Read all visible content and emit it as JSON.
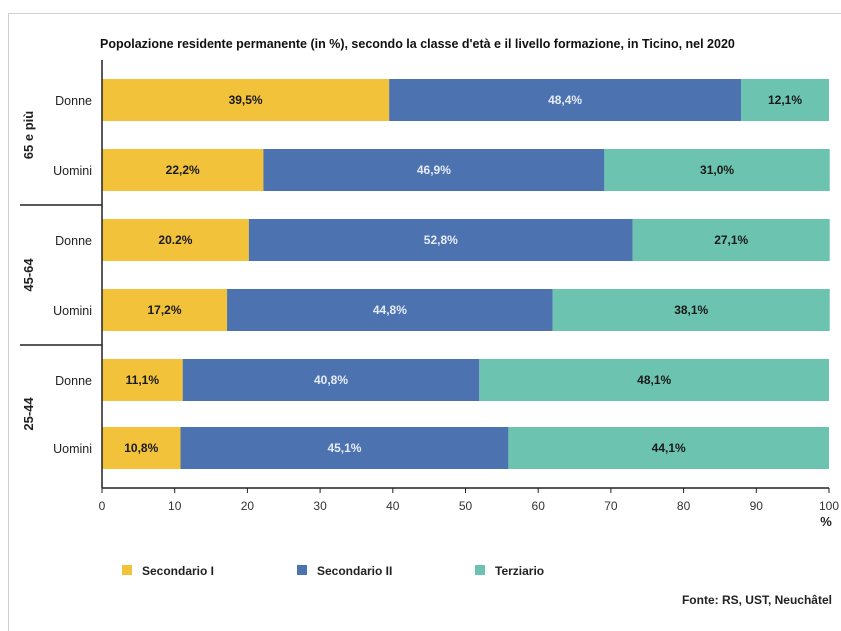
{
  "chart_data": {
    "type": "bar",
    "orientation": "horizontal",
    "stacked": true,
    "title": "Popolazione residente permanente (in %), secondo la classe d'età e il livello formazione, in Ticino, nel 2020",
    "xlabel": "%",
    "xlim": [
      0,
      100
    ],
    "xticks": [
      "0",
      "10",
      "20",
      "30",
      "40",
      "50",
      "60",
      "70",
      "80",
      "90",
      "100"
    ],
    "groups": [
      {
        "label": "65 e più",
        "rows": [
          0,
          1
        ]
      },
      {
        "label": "45-64",
        "rows": [
          2,
          3
        ]
      },
      {
        "label": "25-44",
        "rows": [
          4,
          5
        ]
      }
    ],
    "categories": [
      "Donne",
      "Uomini",
      "Donne",
      "Uomini",
      "Donne",
      "Uomini"
    ],
    "series": [
      {
        "name": "Secondario I",
        "color": "#f2c23a",
        "values": [
          39.5,
          22.2,
          20.2,
          17.2,
          11.1,
          10.8
        ],
        "labels": [
          "39,5%",
          "22,2%",
          "20.2%",
          "17,2%",
          "11,1%",
          "10,8%"
        ]
      },
      {
        "name": "Secondario II",
        "color": "#4c72b0",
        "values": [
          48.4,
          46.9,
          52.8,
          44.8,
          40.8,
          45.1
        ],
        "labels": [
          "48,4%",
          "46,9%",
          "52,8%",
          "44,8%",
          "40,8%",
          "45,1%"
        ]
      },
      {
        "name": "Terziario",
        "color": "#6cc3b0",
        "values": [
          12.1,
          31.0,
          27.1,
          38.1,
          48.1,
          44.1
        ],
        "labels": [
          "12,1%",
          "31,0%",
          "27,1%",
          "38,1%",
          "48,1%",
          "44,1%"
        ]
      }
    ],
    "legend_position": "bottom-left",
    "grid": false
  },
  "source": "Fonte: RS, UST, Neuchâtel"
}
